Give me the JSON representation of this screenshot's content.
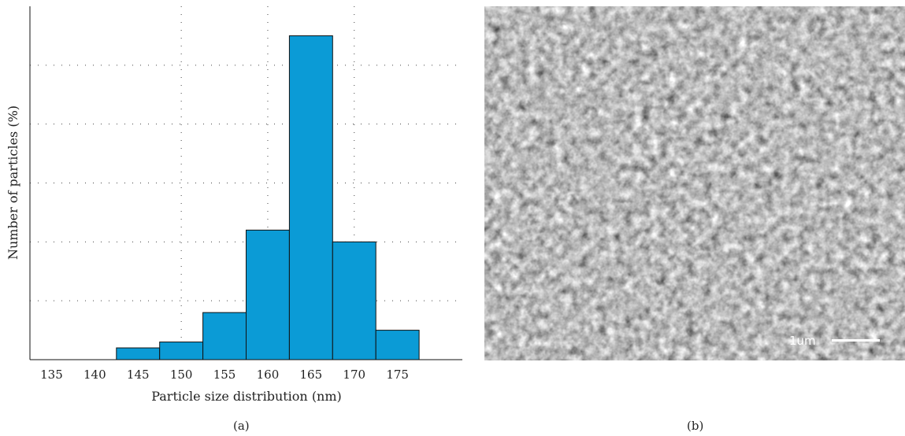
{
  "panel_labels": {
    "a": "(a)",
    "b": "(b)"
  },
  "sem": {
    "scale_bar_label": "1um"
  },
  "chart_data": {
    "type": "bar",
    "title": "",
    "xlabel": "Particle size distribution (nm)",
    "ylabel": "Number of particles (%)",
    "x_ticks": [
      "135",
      "140",
      "145",
      "150",
      "155",
      "160",
      "165",
      "170",
      "175"
    ],
    "categories": [
      "145",
      "150",
      "155",
      "160",
      "165",
      "170",
      "175"
    ],
    "values": [
      2,
      3,
      8,
      22,
      55,
      20,
      5
    ],
    "xlim": [
      132.5,
      182.5
    ],
    "ylim": [
      0,
      60
    ],
    "grid": true,
    "bar_color": "#0b9bd6",
    "bar_edge_color": "#111111"
  }
}
